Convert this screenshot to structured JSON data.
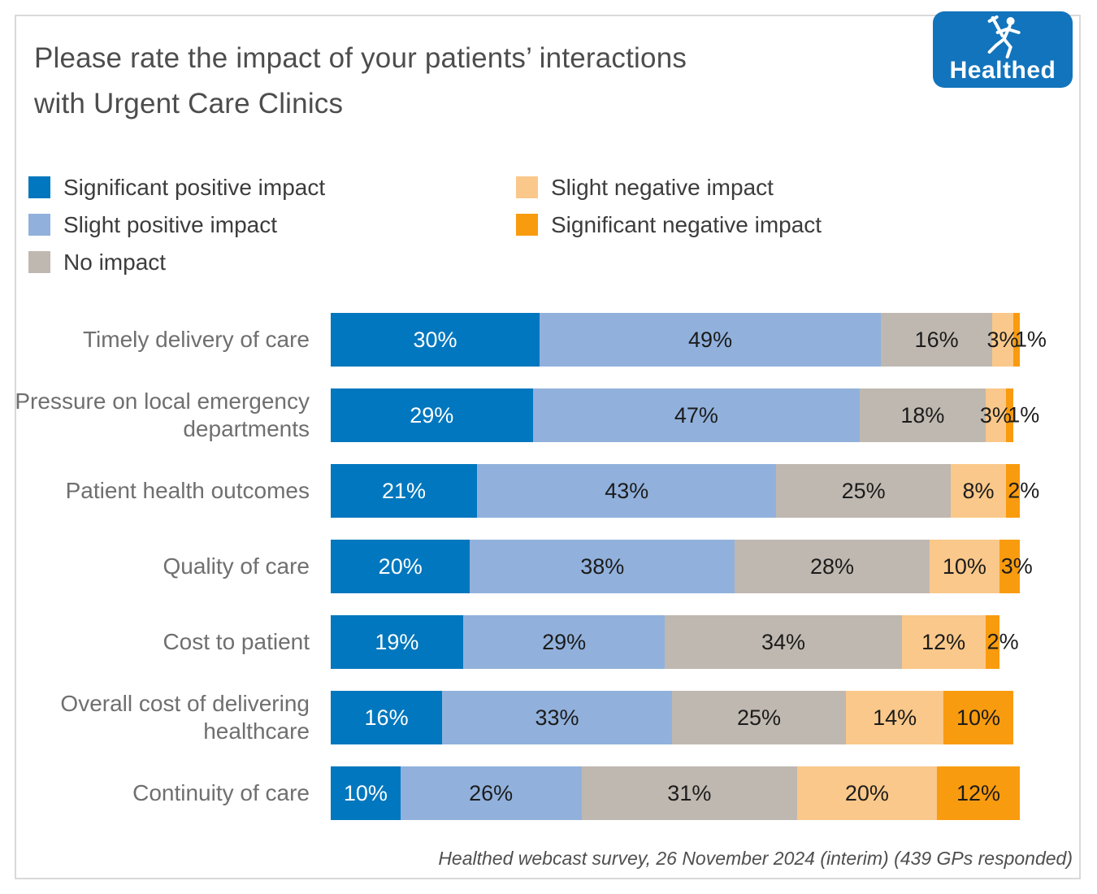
{
  "page": {
    "title_line1": "Please rate the impact of your patients’ interactions",
    "title_line2": "with Urgent Care Clinics"
  },
  "logo": {
    "text": "Healthed",
    "bg_color": "#1274BC",
    "icon": "running-figure-with-caduceus"
  },
  "chart_data": {
    "type": "bar",
    "orientation": "horizontal",
    "stacked": true,
    "title": "Please rate the impact of your patients’ interactions with Urgent Care Clinics",
    "xlim": [
      0,
      100
    ],
    "value_suffix": "%",
    "grid": false,
    "legend_position": "top-left two-column",
    "categories": [
      "Timely delivery of care",
      "Pressure on local emergency departments",
      "Patient health outcomes",
      "Quality of care",
      "Cost to patient",
      "Overall cost of delivering healthcare",
      "Continuity of care"
    ],
    "series": [
      {
        "name": "Significant positive impact",
        "color": "#0077BE",
        "label_color": "#ffffff",
        "values": [
          30,
          29,
          21,
          20,
          19,
          16,
          10
        ]
      },
      {
        "name": "Slight positive impact",
        "color": "#91B1DC",
        "label_color": "#1c1c1c",
        "values": [
          49,
          47,
          43,
          38,
          29,
          33,
          26
        ]
      },
      {
        "name": "No impact",
        "color": "#BFB8B0",
        "label_color": "#1c1c1c",
        "values": [
          16,
          18,
          25,
          28,
          34,
          25,
          31
        ]
      },
      {
        "name": "Slight negative impact",
        "color": "#FAC88A",
        "label_color": "#1c1c1c",
        "values": [
          3,
          3,
          8,
          10,
          12,
          14,
          20
        ]
      },
      {
        "name": "Significant negative impact",
        "color": "#F99B0F",
        "label_color": "#1c1c1c",
        "values": [
          1,
          1,
          2,
          3,
          2,
          10,
          12
        ]
      }
    ],
    "legend_columns": [
      [
        0,
        1,
        2
      ],
      [
        3,
        4
      ]
    ]
  },
  "footer": {
    "source": "Healthed webcast survey, 26 November 2024 (interim) (439 GPs responded)"
  }
}
